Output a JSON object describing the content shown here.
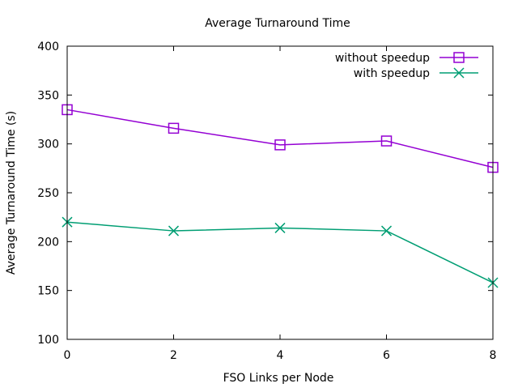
{
  "chart_data": {
    "type": "line",
    "title": "Average Turnaround Time",
    "xlabel": "FSO Links per Node",
    "ylabel": "Average Turnaround Time (s)",
    "x": [
      0,
      2,
      4,
      6,
      8
    ],
    "xlim": [
      0,
      8
    ],
    "ylim": [
      100,
      400
    ],
    "xticks": [
      0,
      2,
      4,
      6,
      8
    ],
    "yticks": [
      100,
      150,
      200,
      250,
      300,
      350,
      400
    ],
    "grid": false,
    "legend_position": "top-right",
    "series": [
      {
        "name": "without speedup",
        "marker": "square",
        "color": "#9400d3",
        "values": [
          335,
          316,
          299,
          303,
          276
        ]
      },
      {
        "name": "with speedup",
        "marker": "cross",
        "color": "#009e73",
        "values": [
          220,
          211,
          214,
          211,
          158
        ]
      }
    ]
  }
}
